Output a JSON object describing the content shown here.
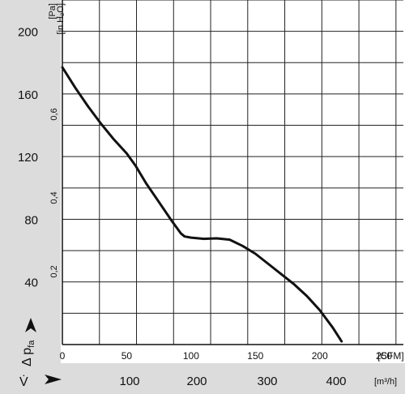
{
  "chart_data": {
    "type": "line",
    "title": "",
    "pressure_pa_axis": {
      "unit": "[Pa]",
      "ticks": [
        40,
        80,
        120,
        160,
        200
      ],
      "range": [
        0,
        220
      ]
    },
    "pressure_inh2o_axis": {
      "unit": "[in H2O]",
      "unit_display": "[in H₂O]",
      "ticks": [
        "0,2",
        "0,4",
        "0,6"
      ]
    },
    "flow_cfm_axis": {
      "unit": "[CFM]",
      "ticks": [
        0,
        50,
        100,
        150,
        200,
        250
      ],
      "range": [
        0,
        265
      ]
    },
    "flow_m3h_axis": {
      "unit": "[m³/h]",
      "ticks": [
        100,
        200,
        300,
        400
      ]
    },
    "y_symbol": "Δ p",
    "y_symbol_sub": "fa",
    "x_symbol": "V̇",
    "grid": true,
    "series": [
      {
        "x": [
          0,
          10,
          20,
          30,
          40,
          50,
          57,
          65,
          75,
          85,
          92,
          95,
          100,
          110,
          120,
          130,
          140,
          150,
          160,
          170,
          180,
          190,
          200,
          210,
          217
        ],
        "y": [
          177,
          164,
          152,
          141,
          131,
          122,
          114,
          103,
          91,
          79,
          71,
          69,
          68.3,
          67.5,
          67.8,
          67,
          63,
          58,
          51.5,
          45,
          38.5,
          31,
          22,
          11,
          2
        ]
      }
    ]
  }
}
